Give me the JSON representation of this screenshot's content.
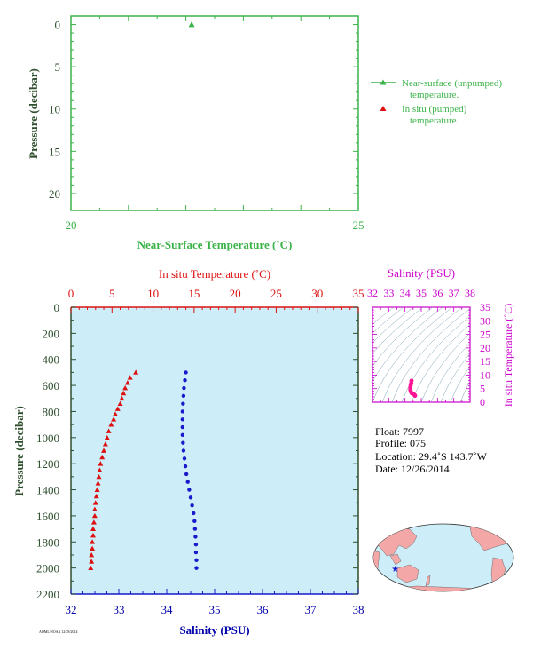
{
  "colors": {
    "green": "#3cb34a",
    "dark": "#2f4f2f",
    "red": "#dd1111",
    "blue": "#1a1acc",
    "navy": "#0000aa",
    "magenta": "#cc00cc",
    "pink": "#ff1493",
    "plot_bg": "#cdeef8",
    "ts_line": "#7fa0b0",
    "land": "#f4a7a7",
    "ocean": "#cdeef8"
  },
  "chart_data": [
    {
      "id": "near_surface",
      "type": "scatter",
      "xlabel": "Near-Surface Temperature (˚C)",
      "ylabel": "Pressure (decibar)",
      "xlim": [
        20,
        25
      ],
      "ylim": [
        22,
        -1
      ],
      "x_ticks": [
        "20",
        "25"
      ],
      "y_ticks": [
        "0",
        "5",
        "10",
        "15",
        "20"
      ],
      "series": [
        {
          "name": "Near-surface (unpumped) temperature.",
          "points": [
            [
              22.1,
              0
            ]
          ]
        }
      ],
      "legend": {
        "entries": [
          {
            "line1": "Near-surface (unpumped)",
            "line2": "temperature."
          },
          {
            "line1": "In situ (pumped)",
            "line2": "temperature."
          }
        ],
        "placement": "right"
      }
    },
    {
      "id": "profile",
      "type": "scatter",
      "top_label": "In situ Temperature (˚C)",
      "xlabel": "Salinity (PSU)",
      "ylabel": "Pressure (decibar)",
      "temp_lim": [
        0,
        35
      ],
      "sal_lim": [
        32,
        38
      ],
      "ylim": [
        2200,
        0
      ],
      "temp_ticks": [
        "0",
        "5",
        "10",
        "15",
        "20",
        "25",
        "30",
        "35"
      ],
      "sal_ticks": [
        "32",
        "33",
        "34",
        "35",
        "36",
        "37",
        "38"
      ],
      "y_ticks": [
        "0",
        "200",
        "400",
        "600",
        "800",
        "1000",
        "1200",
        "1400",
        "1600",
        "1800",
        "2000",
        "2200"
      ],
      "temperature": {
        "pressure": [
          500,
          540,
          580,
          620,
          660,
          700,
          740,
          780,
          820,
          860,
          900,
          950,
          1000,
          1050,
          1100,
          1150,
          1200,
          1250,
          1300,
          1350,
          1400,
          1450,
          1500,
          1550,
          1600,
          1650,
          1700,
          1750,
          1800,
          1850,
          1900,
          1950,
          2000
        ],
        "values": [
          7.9,
          7.2,
          6.9,
          6.6,
          6.4,
          6.2,
          6.0,
          5.7,
          5.4,
          5.2,
          4.9,
          4.6,
          4.4,
          4.2,
          4.0,
          3.8,
          3.6,
          3.5,
          3.4,
          3.3,
          3.2,
          3.1,
          3.0,
          2.9,
          2.9,
          2.8,
          2.7,
          2.7,
          2.6,
          2.6,
          2.5,
          2.5,
          2.4
        ]
      },
      "salinity": {
        "pressure": [
          500,
          560,
          620,
          680,
          740,
          800,
          860,
          920,
          980,
          1040,
          1100,
          1160,
          1220,
          1280,
          1340,
          1400,
          1460,
          1520,
          1580,
          1640,
          1700,
          1760,
          1820,
          1880,
          1940,
          2000
        ],
        "values": [
          34.4,
          34.38,
          34.36,
          34.35,
          34.34,
          34.33,
          34.33,
          34.33,
          34.33,
          34.34,
          34.35,
          34.37,
          34.39,
          34.41,
          34.44,
          34.47,
          34.5,
          34.53,
          34.56,
          34.58,
          34.59,
          34.6,
          34.61,
          34.61,
          34.62,
          34.62
        ]
      }
    },
    {
      "id": "ts_diagram",
      "type": "scatter",
      "title": "Salinity (PSU)",
      "ylabel": "In situ Temperature (˚C)",
      "xlim": [
        32,
        38
      ],
      "ylim": [
        0,
        35
      ],
      "x_ticks": [
        "32",
        "33",
        "34",
        "35",
        "36",
        "37",
        "38"
      ],
      "y_ticks": [
        "0",
        "5",
        "10",
        "15",
        "20",
        "25",
        "30",
        "35"
      ],
      "points": [
        [
          34.4,
          7.9
        ],
        [
          34.38,
          7.0
        ],
        [
          34.35,
          6.2
        ],
        [
          34.33,
          5.4
        ],
        [
          34.33,
          4.6
        ],
        [
          34.35,
          4.0
        ],
        [
          34.39,
          3.5
        ],
        [
          34.44,
          3.2
        ],
        [
          34.5,
          3.0
        ],
        [
          34.56,
          2.8
        ],
        [
          34.6,
          2.6
        ],
        [
          34.62,
          2.4
        ]
      ]
    }
  ],
  "info": {
    "float": "Float:  7997",
    "profile": "Profile:  075",
    "location": "Location:  29.4˚S  143.7˚W",
    "date": "Date:  12/26/2014"
  },
  "map": {
    "marker": "★",
    "float_lon": -143.7,
    "float_lat": -29.4
  },
  "footer": "AOML/NOAA  12/28/2014"
}
